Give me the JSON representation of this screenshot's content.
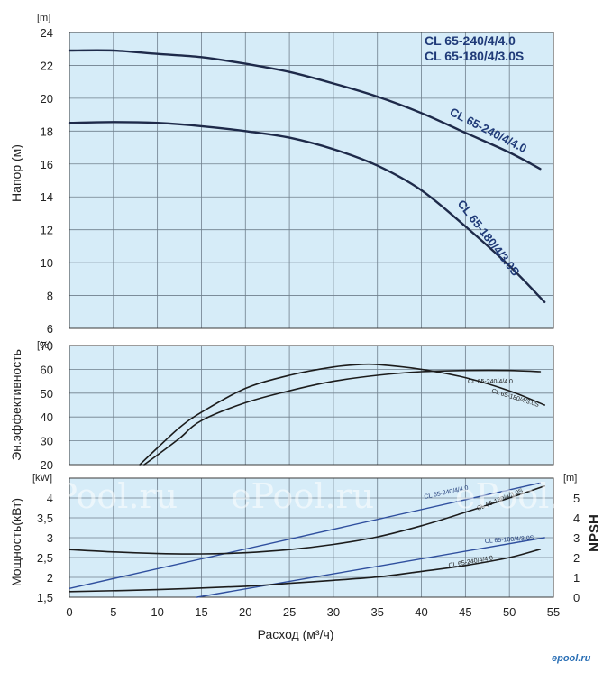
{
  "colors": {
    "plot_bg": "#d6ecf8",
    "grid": "#6f7f8c",
    "series_dark": "#1e2a4a",
    "series_navy": "#1f3a78",
    "series_black": "#1c1c1c",
    "power_blue": "#2f4f9e"
  },
  "legend": [
    "CL 65-240/4/4.0",
    "CL 65-180/4/3.0S"
  ],
  "watermark": "ePool.ru",
  "logo": "epool.ru",
  "chart_data": [
    {
      "type": "line",
      "panel": "head",
      "ylabel": "Напор (м)",
      "yunit": "[m]",
      "xlim": [
        0,
        55
      ],
      "ylim": [
        6,
        24
      ],
      "yticks": [
        "6",
        "8",
        "10",
        "12",
        "14",
        "16",
        "18",
        "20",
        "22",
        "24"
      ],
      "series": [
        {
          "name": "CL 65-240/4/4.0",
          "x": [
            0,
            5,
            10,
            15,
            20,
            25,
            30,
            35,
            40,
            45,
            50,
            53.5
          ],
          "y": [
            22.9,
            22.9,
            22.7,
            22.5,
            22.1,
            21.6,
            20.9,
            20.1,
            19.1,
            17.9,
            16.7,
            15.7
          ]
        },
        {
          "name": "CL 65-180/4/3.0S",
          "x": [
            0,
            5,
            10,
            15,
            20,
            25,
            30,
            35,
            40,
            45,
            50,
            54
          ],
          "y": [
            18.5,
            18.55,
            18.5,
            18.3,
            18.0,
            17.6,
            16.9,
            15.9,
            14.4,
            12.2,
            9.8,
            7.6
          ]
        }
      ]
    },
    {
      "type": "line",
      "panel": "efficiency",
      "ylabel": "Эн.эффективность",
      "yunit": "[%]",
      "xlim": [
        0,
        55
      ],
      "ylim": [
        20,
        70
      ],
      "yticks": [
        "20",
        "30",
        "40",
        "50",
        "60",
        "70"
      ],
      "series": [
        {
          "name": "CL 65-240/4/4.0",
          "x": [
            8.5,
            10,
            12.5,
            15,
            20,
            25,
            30,
            35,
            40,
            45,
            50,
            53.5
          ],
          "y": [
            20,
            24,
            31,
            38.5,
            46,
            51,
            55,
            57.5,
            59,
            59.5,
            59.5,
            59
          ]
        },
        {
          "name": "CL 65-180/4/3.0S",
          "x": [
            8,
            10,
            12.5,
            15,
            20,
            25,
            30,
            33,
            35,
            40,
            45,
            50,
            54
          ],
          "y": [
            20,
            27,
            35.5,
            42,
            52,
            57.5,
            61,
            62,
            62,
            60,
            56.5,
            51,
            45
          ]
        }
      ]
    },
    {
      "type": "line",
      "panel": "power_npsh",
      "xlabel": "Расход (м³/ч)",
      "ylabel": "Мощность(кВт)",
      "yunit": "[kW]",
      "y2label": "NPSH",
      "y2unit": "[m]",
      "xlim": [
        0,
        55
      ],
      "ylim": [
        1.5,
        4.5
      ],
      "y2lim": [
        0,
        6
      ],
      "xticks": [
        "0",
        "5",
        "10",
        "15",
        "20",
        "25",
        "30",
        "35",
        "40",
        "45",
        "50",
        "55"
      ],
      "yticks": [
        "1,5",
        "2",
        "2,5",
        "3",
        "3,5",
        "4"
      ],
      "y2ticks": [
        "0",
        "1",
        "2",
        "3",
        "4",
        "5"
      ],
      "series": [
        {
          "name": "CL 65-240/4/4.0",
          "quantity": "power",
          "x": [
            0,
            53.5
          ],
          "y": [
            1.72,
            4.38
          ]
        },
        {
          "name": "CL 65-180/4/3.0S",
          "quantity": "power",
          "x": [
            14.5,
            54
          ],
          "y": [
            1.5,
            3.0
          ]
        },
        {
          "name": "CL 65-180/4/3.0S",
          "quantity": "npsh",
          "x": [
            0,
            5,
            10,
            15,
            20,
            25,
            30,
            35,
            40,
            45,
            50,
            54
          ],
          "y": [
            2.4,
            2.28,
            2.2,
            2.18,
            2.24,
            2.4,
            2.66,
            3.04,
            3.6,
            4.28,
            5.0,
            5.6
          ]
        },
        {
          "name": "CL 65-240/4/4.0",
          "quantity": "npsh",
          "x": [
            0,
            10,
            20,
            25,
            30,
            35,
            40,
            45,
            50,
            53.5
          ],
          "y": [
            0.28,
            0.38,
            0.55,
            0.7,
            0.85,
            1.02,
            1.3,
            1.6,
            2.0,
            2.42
          ]
        }
      ]
    }
  ]
}
